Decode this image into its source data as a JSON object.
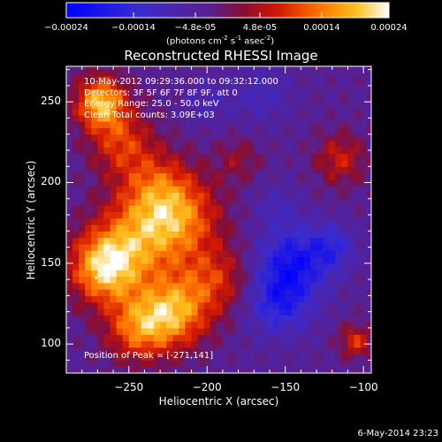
{
  "chart_data": {
    "type": "heatmap",
    "title": "Reconstructed RHESSI Image",
    "xlabel": "Heliocentric X (arcsec)",
    "ylabel": "Heliocentric Y (arcsec)",
    "xlim": [
      -290,
      -95
    ],
    "ylim": [
      82,
      272
    ],
    "x_ticks": [
      -250,
      -200,
      -150,
      -100
    ],
    "y_ticks": [
      100,
      150,
      200,
      250
    ],
    "colorbar": {
      "ticks": [
        "-0.00024",
        "-0.00014",
        "-4.8e-05",
        "4.8e-05",
        "0.00014",
        "0.00024"
      ],
      "tick_values": [
        -0.00024,
        -0.00014,
        -4.8e-05,
        4.8e-05,
        0.00014,
        0.00024
      ],
      "range": [
        -0.00024,
        0.00024
      ],
      "units_label": "(photons cm",
      "units_exp1": "-2",
      "units_mid": " s",
      "units_exp2": "-1",
      "units_mid2": " asec",
      "units_exp3": "-2",
      "units_close": ")"
    },
    "annotations": [
      "10-May-2012 09:29:36.000 to 09:32:12.000",
      "Detectors: 3F 5F 6F 7F 8F 9F, att 0",
      "Energy Range: 25.0 - 50.0 keV",
      "Clean    Total counts: 3.09E+03"
    ],
    "peak_label": "Position of Peak = [-271,141]",
    "peak": [
      -271,
      141
    ],
    "blobs": [
      {
        "x": -268,
        "y": 250,
        "r": 16,
        "v": 0.00022
      },
      {
        "x": -255,
        "y": 225,
        "r": 20,
        "v": 0.00012
      },
      {
        "x": -265,
        "y": 148,
        "r": 22,
        "v": 0.00024
      },
      {
        "x": -240,
        "y": 170,
        "r": 28,
        "v": 0.00016
      },
      {
        "x": -215,
        "y": 180,
        "r": 25,
        "v": 0.00013
      },
      {
        "x": -222,
        "y": 120,
        "r": 22,
        "v": 0.0002
      },
      {
        "x": -245,
        "y": 110,
        "r": 20,
        "v": 0.00015
      },
      {
        "x": -195,
        "y": 140,
        "r": 22,
        "v": 0.00011
      },
      {
        "x": -232,
        "y": 200,
        "r": 22,
        "v": 9e-05
      },
      {
        "x": -180,
        "y": 215,
        "r": 14,
        "v": 6e-05
      },
      {
        "x": -115,
        "y": 215,
        "r": 16,
        "v": 0.0001
      },
      {
        "x": -105,
        "y": 102,
        "r": 10,
        "v": 0.00012
      },
      {
        "x": -145,
        "y": 150,
        "r": 22,
        "v": -0.00016
      },
      {
        "x": -155,
        "y": 125,
        "r": 20,
        "v": -0.00012
      },
      {
        "x": -120,
        "y": 160,
        "r": 14,
        "v": -0.0001
      },
      {
        "x": -200,
        "y": 250,
        "r": 14,
        "v": -5e-05
      },
      {
        "x": -165,
        "y": 255,
        "r": 18,
        "v": -6e-05
      },
      {
        "x": -155,
        "y": 185,
        "r": 14,
        "v": -5e-05
      }
    ],
    "background_value": -3.5e-05,
    "grid_resolution_arcsec": 4
  },
  "footer_timestamp": "6-May-2014 23:23"
}
